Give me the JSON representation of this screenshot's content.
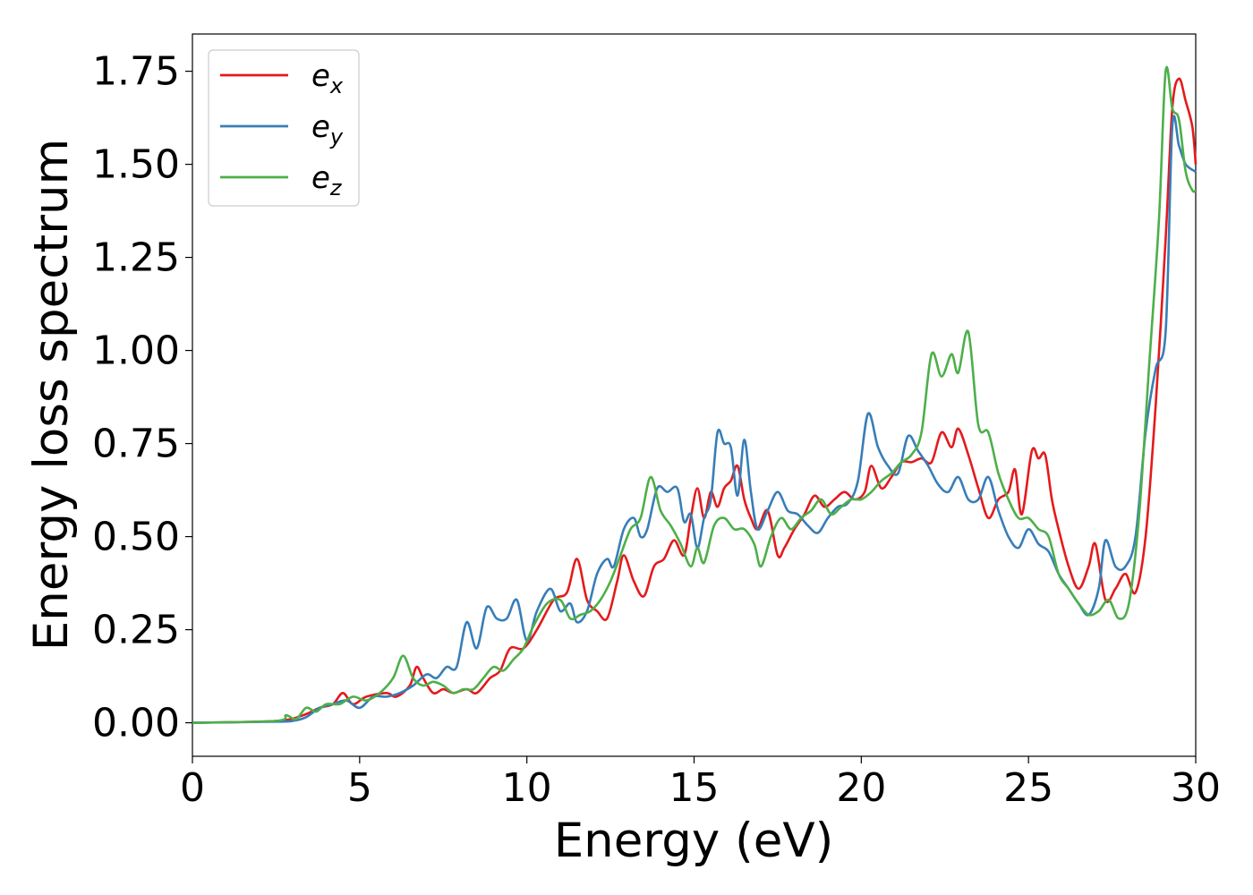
{
  "chart_data": {
    "type": "line",
    "xlabel": "Energy (eV)",
    "ylabel": "Energy loss spectrum",
    "xlim": [
      0,
      30
    ],
    "ylim": [
      -0.09,
      1.85
    ],
    "xticks": [
      0,
      5,
      10,
      15,
      20,
      25,
      30
    ],
    "xtick_labels": [
      "0",
      "5",
      "10",
      "15",
      "20",
      "25",
      "30"
    ],
    "yticks": [
      0,
      0.25,
      0.5,
      0.75,
      1.0,
      1.25,
      1.5,
      1.75
    ],
    "ytick_labels": [
      "0.00",
      "0.25",
      "0.50",
      "0.75",
      "1.00",
      "1.25",
      "1.50",
      "1.75"
    ],
    "grid": false,
    "legend_position": "top-left",
    "series": [
      {
        "name": "e_x",
        "legend_base": "e",
        "legend_sub": "x",
        "color": "#e41a1c",
        "points": [
          [
            0,
            0
          ],
          [
            2.5,
            0.005
          ],
          [
            3.3,
            0.02
          ],
          [
            3.8,
            0.04
          ],
          [
            4.2,
            0.05
          ],
          [
            4.5,
            0.08
          ],
          [
            4.8,
            0.05
          ],
          [
            5.2,
            0.07
          ],
          [
            5.8,
            0.08
          ],
          [
            6.1,
            0.07
          ],
          [
            6.5,
            0.1
          ],
          [
            6.7,
            0.15
          ],
          [
            6.9,
            0.12
          ],
          [
            7.2,
            0.08
          ],
          [
            7.5,
            0.09
          ],
          [
            7.8,
            0.08
          ],
          [
            8.2,
            0.09
          ],
          [
            8.5,
            0.08
          ],
          [
            8.9,
            0.12
          ],
          [
            9.2,
            0.14
          ],
          [
            9.5,
            0.2
          ],
          [
            9.9,
            0.2
          ],
          [
            10.3,
            0.25
          ],
          [
            10.8,
            0.33
          ],
          [
            11.2,
            0.35
          ],
          [
            11.5,
            0.44
          ],
          [
            11.8,
            0.33
          ],
          [
            12.1,
            0.3
          ],
          [
            12.4,
            0.28
          ],
          [
            12.7,
            0.38
          ],
          [
            12.9,
            0.45
          ],
          [
            13.2,
            0.38
          ],
          [
            13.5,
            0.34
          ],
          [
            13.8,
            0.42
          ],
          [
            14.1,
            0.44
          ],
          [
            14.4,
            0.49
          ],
          [
            14.7,
            0.45
          ],
          [
            14.9,
            0.55
          ],
          [
            15.1,
            0.63
          ],
          [
            15.3,
            0.55
          ],
          [
            15.5,
            0.62
          ],
          [
            15.7,
            0.58
          ],
          [
            15.9,
            0.63
          ],
          [
            16.1,
            0.65
          ],
          [
            16.3,
            0.69
          ],
          [
            16.5,
            0.6
          ],
          [
            16.7,
            0.55
          ],
          [
            16.9,
            0.52
          ],
          [
            17.2,
            0.57
          ],
          [
            17.5,
            0.45
          ],
          [
            17.7,
            0.47
          ],
          [
            18.0,
            0.52
          ],
          [
            18.3,
            0.56
          ],
          [
            18.6,
            0.61
          ],
          [
            18.9,
            0.58
          ],
          [
            19.2,
            0.6
          ],
          [
            19.5,
            0.62
          ],
          [
            19.8,
            0.6
          ],
          [
            20.1,
            0.62
          ],
          [
            20.3,
            0.69
          ],
          [
            20.6,
            0.63
          ],
          [
            20.9,
            0.66
          ],
          [
            21.2,
            0.7
          ],
          [
            21.5,
            0.7
          ],
          [
            21.8,
            0.71
          ],
          [
            22.1,
            0.7
          ],
          [
            22.4,
            0.78
          ],
          [
            22.7,
            0.74
          ],
          [
            22.9,
            0.79
          ],
          [
            23.2,
            0.72
          ],
          [
            23.5,
            0.63
          ],
          [
            23.8,
            0.55
          ],
          [
            24.1,
            0.6
          ],
          [
            24.4,
            0.62
          ],
          [
            24.6,
            0.68
          ],
          [
            24.8,
            0.56
          ],
          [
            25.1,
            0.73
          ],
          [
            25.3,
            0.71
          ],
          [
            25.5,
            0.72
          ],
          [
            25.7,
            0.6
          ],
          [
            25.9,
            0.52
          ],
          [
            26.2,
            0.42
          ],
          [
            26.5,
            0.36
          ],
          [
            26.8,
            0.42
          ],
          [
            27.0,
            0.48
          ],
          [
            27.3,
            0.33
          ],
          [
            27.6,
            0.36
          ],
          [
            27.9,
            0.4
          ],
          [
            28.2,
            0.35
          ],
          [
            28.5,
            0.5
          ],
          [
            28.8,
            0.85
          ],
          [
            29.1,
            1.3
          ],
          [
            29.3,
            1.65
          ],
          [
            29.5,
            1.73
          ],
          [
            29.7,
            1.67
          ],
          [
            29.9,
            1.6
          ],
          [
            30.0,
            1.5
          ]
        ]
      },
      {
        "name": "e_y",
        "legend_base": "e",
        "legend_sub": "y",
        "color": "#377eb8",
        "points": [
          [
            0,
            0
          ],
          [
            2.5,
            0.003
          ],
          [
            3.0,
            0.005
          ],
          [
            3.4,
            0.015
          ],
          [
            3.8,
            0.04
          ],
          [
            4.2,
            0.05
          ],
          [
            4.6,
            0.06
          ],
          [
            5.0,
            0.04
          ],
          [
            5.4,
            0.07
          ],
          [
            5.8,
            0.07
          ],
          [
            6.2,
            0.08
          ],
          [
            6.6,
            0.1
          ],
          [
            7.0,
            0.13
          ],
          [
            7.3,
            0.12
          ],
          [
            7.6,
            0.15
          ],
          [
            7.9,
            0.15
          ],
          [
            8.2,
            0.27
          ],
          [
            8.5,
            0.2
          ],
          [
            8.8,
            0.31
          ],
          [
            9.1,
            0.28
          ],
          [
            9.4,
            0.28
          ],
          [
            9.7,
            0.33
          ],
          [
            10.0,
            0.22
          ],
          [
            10.3,
            0.3
          ],
          [
            10.7,
            0.36
          ],
          [
            11.0,
            0.3
          ],
          [
            11.3,
            0.32
          ],
          [
            11.5,
            0.27
          ],
          [
            11.8,
            0.3
          ],
          [
            12.1,
            0.4
          ],
          [
            12.4,
            0.44
          ],
          [
            12.6,
            0.42
          ],
          [
            12.9,
            0.52
          ],
          [
            13.2,
            0.55
          ],
          [
            13.4,
            0.5
          ],
          [
            13.6,
            0.52
          ],
          [
            13.9,
            0.63
          ],
          [
            14.2,
            0.62
          ],
          [
            14.5,
            0.63
          ],
          [
            14.7,
            0.54
          ],
          [
            14.9,
            0.56
          ],
          [
            15.1,
            0.47
          ],
          [
            15.3,
            0.55
          ],
          [
            15.5,
            0.6
          ],
          [
            15.7,
            0.78
          ],
          [
            15.9,
            0.75
          ],
          [
            16.1,
            0.74
          ],
          [
            16.3,
            0.61
          ],
          [
            16.5,
            0.76
          ],
          [
            16.7,
            0.62
          ],
          [
            16.9,
            0.52
          ],
          [
            17.2,
            0.57
          ],
          [
            17.5,
            0.62
          ],
          [
            17.8,
            0.57
          ],
          [
            18.1,
            0.56
          ],
          [
            18.4,
            0.53
          ],
          [
            18.7,
            0.51
          ],
          [
            19.0,
            0.55
          ],
          [
            19.3,
            0.58
          ],
          [
            19.6,
            0.59
          ],
          [
            19.9,
            0.65
          ],
          [
            20.2,
            0.83
          ],
          [
            20.5,
            0.74
          ],
          [
            20.8,
            0.69
          ],
          [
            21.1,
            0.67
          ],
          [
            21.4,
            0.77
          ],
          [
            21.7,
            0.73
          ],
          [
            22.0,
            0.69
          ],
          [
            22.3,
            0.64
          ],
          [
            22.6,
            0.62
          ],
          [
            22.9,
            0.66
          ],
          [
            23.2,
            0.6
          ],
          [
            23.5,
            0.6
          ],
          [
            23.8,
            0.66
          ],
          [
            24.1,
            0.57
          ],
          [
            24.4,
            0.5
          ],
          [
            24.7,
            0.47
          ],
          [
            25.0,
            0.52
          ],
          [
            25.3,
            0.48
          ],
          [
            25.6,
            0.46
          ],
          [
            25.9,
            0.4
          ],
          [
            26.2,
            0.36
          ],
          [
            26.5,
            0.32
          ],
          [
            26.8,
            0.29
          ],
          [
            27.1,
            0.36
          ],
          [
            27.3,
            0.49
          ],
          [
            27.6,
            0.42
          ],
          [
            27.9,
            0.42
          ],
          [
            28.2,
            0.5
          ],
          [
            28.5,
            0.78
          ],
          [
            28.8,
            0.95
          ],
          [
            29.1,
            1.05
          ],
          [
            29.3,
            1.6
          ],
          [
            29.5,
            1.55
          ],
          [
            29.7,
            1.5
          ],
          [
            30.0,
            1.48
          ]
        ]
      },
      {
        "name": "e_z",
        "legend_base": "e",
        "legend_sub": "z",
        "color": "#4daf4a",
        "points": [
          [
            0,
            0
          ],
          [
            2.5,
            0.005
          ],
          [
            2.8,
            0.02
          ],
          [
            3.1,
            0.01
          ],
          [
            3.4,
            0.04
          ],
          [
            3.7,
            0.03
          ],
          [
            4.0,
            0.05
          ],
          [
            4.4,
            0.05
          ],
          [
            4.8,
            0.07
          ],
          [
            5.2,
            0.06
          ],
          [
            5.6,
            0.08
          ],
          [
            6.0,
            0.12
          ],
          [
            6.3,
            0.18
          ],
          [
            6.6,
            0.12
          ],
          [
            6.9,
            0.1
          ],
          [
            7.2,
            0.11
          ],
          [
            7.5,
            0.1
          ],
          [
            7.8,
            0.08
          ],
          [
            8.1,
            0.09
          ],
          [
            8.4,
            0.09
          ],
          [
            8.7,
            0.12
          ],
          [
            9.0,
            0.15
          ],
          [
            9.3,
            0.14
          ],
          [
            9.6,
            0.17
          ],
          [
            9.9,
            0.2
          ],
          [
            10.2,
            0.26
          ],
          [
            10.6,
            0.32
          ],
          [
            11.0,
            0.33
          ],
          [
            11.3,
            0.28
          ],
          [
            11.6,
            0.29
          ],
          [
            11.9,
            0.3
          ],
          [
            12.2,
            0.33
          ],
          [
            12.5,
            0.38
          ],
          [
            12.8,
            0.45
          ],
          [
            13.1,
            0.52
          ],
          [
            13.4,
            0.55
          ],
          [
            13.7,
            0.66
          ],
          [
            14.0,
            0.57
          ],
          [
            14.3,
            0.53
          ],
          [
            14.6,
            0.48
          ],
          [
            14.9,
            0.42
          ],
          [
            15.1,
            0.47
          ],
          [
            15.3,
            0.43
          ],
          [
            15.6,
            0.53
          ],
          [
            15.9,
            0.55
          ],
          [
            16.2,
            0.52
          ],
          [
            16.5,
            0.52
          ],
          [
            16.8,
            0.48
          ],
          [
            17.0,
            0.42
          ],
          [
            17.3,
            0.5
          ],
          [
            17.6,
            0.55
          ],
          [
            17.9,
            0.52
          ],
          [
            18.2,
            0.55
          ],
          [
            18.5,
            0.57
          ],
          [
            18.8,
            0.6
          ],
          [
            19.1,
            0.56
          ],
          [
            19.4,
            0.58
          ],
          [
            19.7,
            0.6
          ],
          [
            20.0,
            0.6
          ],
          [
            20.3,
            0.62
          ],
          [
            20.6,
            0.65
          ],
          [
            20.9,
            0.67
          ],
          [
            21.2,
            0.7
          ],
          [
            21.5,
            0.72
          ],
          [
            21.8,
            0.78
          ],
          [
            22.1,
            0.99
          ],
          [
            22.4,
            0.93
          ],
          [
            22.7,
            0.99
          ],
          [
            22.9,
            0.94
          ],
          [
            23.2,
            1.05
          ],
          [
            23.5,
            0.8
          ],
          [
            23.8,
            0.78
          ],
          [
            24.1,
            0.67
          ],
          [
            24.4,
            0.6
          ],
          [
            24.7,
            0.55
          ],
          [
            25.0,
            0.55
          ],
          [
            25.3,
            0.52
          ],
          [
            25.6,
            0.5
          ],
          [
            25.9,
            0.4
          ],
          [
            26.2,
            0.36
          ],
          [
            26.5,
            0.32
          ],
          [
            26.8,
            0.29
          ],
          [
            27.1,
            0.3
          ],
          [
            27.4,
            0.33
          ],
          [
            27.7,
            0.28
          ],
          [
            28.0,
            0.32
          ],
          [
            28.3,
            0.55
          ],
          [
            28.6,
            0.95
          ],
          [
            28.9,
            1.35
          ],
          [
            29.1,
            1.75
          ],
          [
            29.3,
            1.65
          ],
          [
            29.5,
            1.62
          ],
          [
            29.7,
            1.48
          ],
          [
            29.9,
            1.43
          ],
          [
            30.0,
            1.43
          ]
        ]
      }
    ]
  }
}
